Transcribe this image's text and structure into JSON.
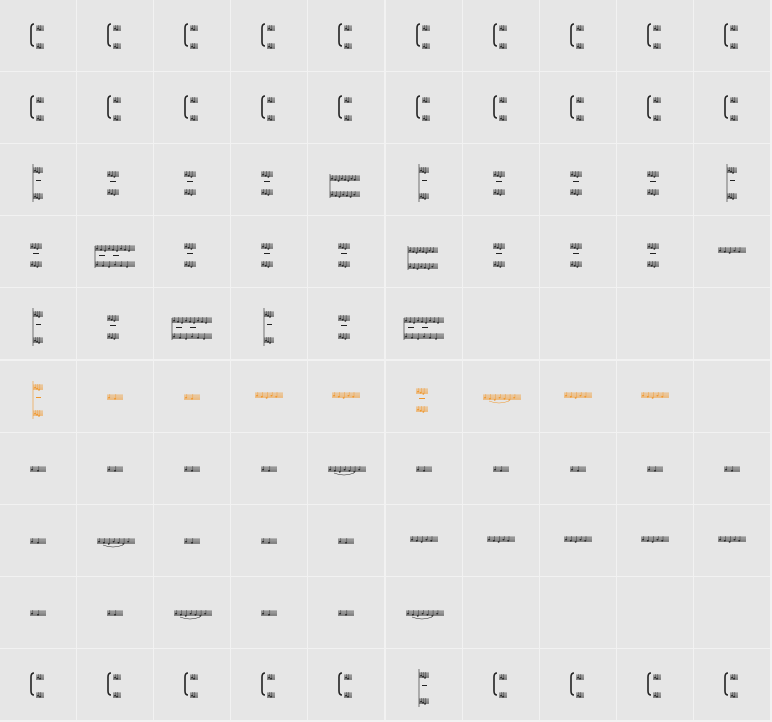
{
  "grid": {
    "columns": 10,
    "row_count": 10,
    "colors": {
      "background": "#e6e6e6",
      "ink": "#222222",
      "highlight": "#f0962a"
    },
    "rows": [
      {
        "kind": "brace-system",
        "highlight": false,
        "count": 10,
        "glyphs": [
          "brace",
          "brace",
          "brace",
          "brace",
          "brace",
          "brace",
          "brace",
          "brace",
          "brace",
          "brace"
        ]
      },
      {
        "kind": "brace-system",
        "highlight": false,
        "count": 10,
        "glyphs": [
          "brace",
          "brace",
          "brace",
          "brace",
          "brace",
          "brace",
          "brace",
          "brace",
          "brace",
          "brace"
        ]
      },
      {
        "kind": "score-fragment",
        "highlight": false,
        "count": 10,
        "glyphs": [
          "tall-system",
          "two-staff",
          "two-staff",
          "two-staff",
          "dense-system",
          "tall-system",
          "two-staff",
          "two-staff",
          "two-staff",
          "tall-system"
        ]
      },
      {
        "kind": "score-fragment",
        "highlight": false,
        "count": 10,
        "glyphs": [
          "two-staff",
          "wide-system",
          "two-staff",
          "two-staff",
          "two-staff",
          "dense-system",
          "two-staff",
          "two-staff",
          "two-staff",
          "single-staff"
        ]
      },
      {
        "kind": "score-fragment",
        "highlight": false,
        "count": 6,
        "glyphs": [
          "tall-system",
          "two-staff",
          "wide-system",
          "tall-system",
          "two-staff",
          "wide-system"
        ]
      },
      {
        "kind": "score-fragment",
        "highlight": true,
        "count": 9,
        "glyphs": [
          "tall-system",
          "mini-staff",
          "mini-staff",
          "single-staff",
          "single-staff",
          "two-staff",
          "wide-staff",
          "single-staff",
          "single-staff"
        ]
      },
      {
        "kind": "single-staff",
        "highlight": false,
        "count": 10,
        "glyphs": [
          "mini-staff",
          "mini-staff",
          "mini-staff",
          "mini-staff",
          "wide-staff",
          "mini-staff",
          "mini-staff",
          "mini-staff",
          "mini-staff",
          "mini-staff"
        ]
      },
      {
        "kind": "single-staff",
        "highlight": false,
        "count": 10,
        "glyphs": [
          "mini-staff",
          "wide-staff",
          "mini-staff",
          "mini-staff",
          "mini-staff",
          "single-staff",
          "single-staff",
          "single-staff",
          "single-staff",
          "single-staff"
        ]
      },
      {
        "kind": "single-staff",
        "highlight": false,
        "count": 6,
        "glyphs": [
          "mini-staff",
          "mini-staff",
          "wide-staff",
          "mini-staff",
          "mini-staff",
          "wide-staff"
        ]
      },
      {
        "kind": "brace-system",
        "highlight": false,
        "count": 10,
        "glyphs": [
          "brace",
          "brace",
          "brace",
          "brace",
          "brace",
          "tall-system",
          "brace",
          "brace",
          "brace",
          "brace"
        ]
      }
    ]
  }
}
